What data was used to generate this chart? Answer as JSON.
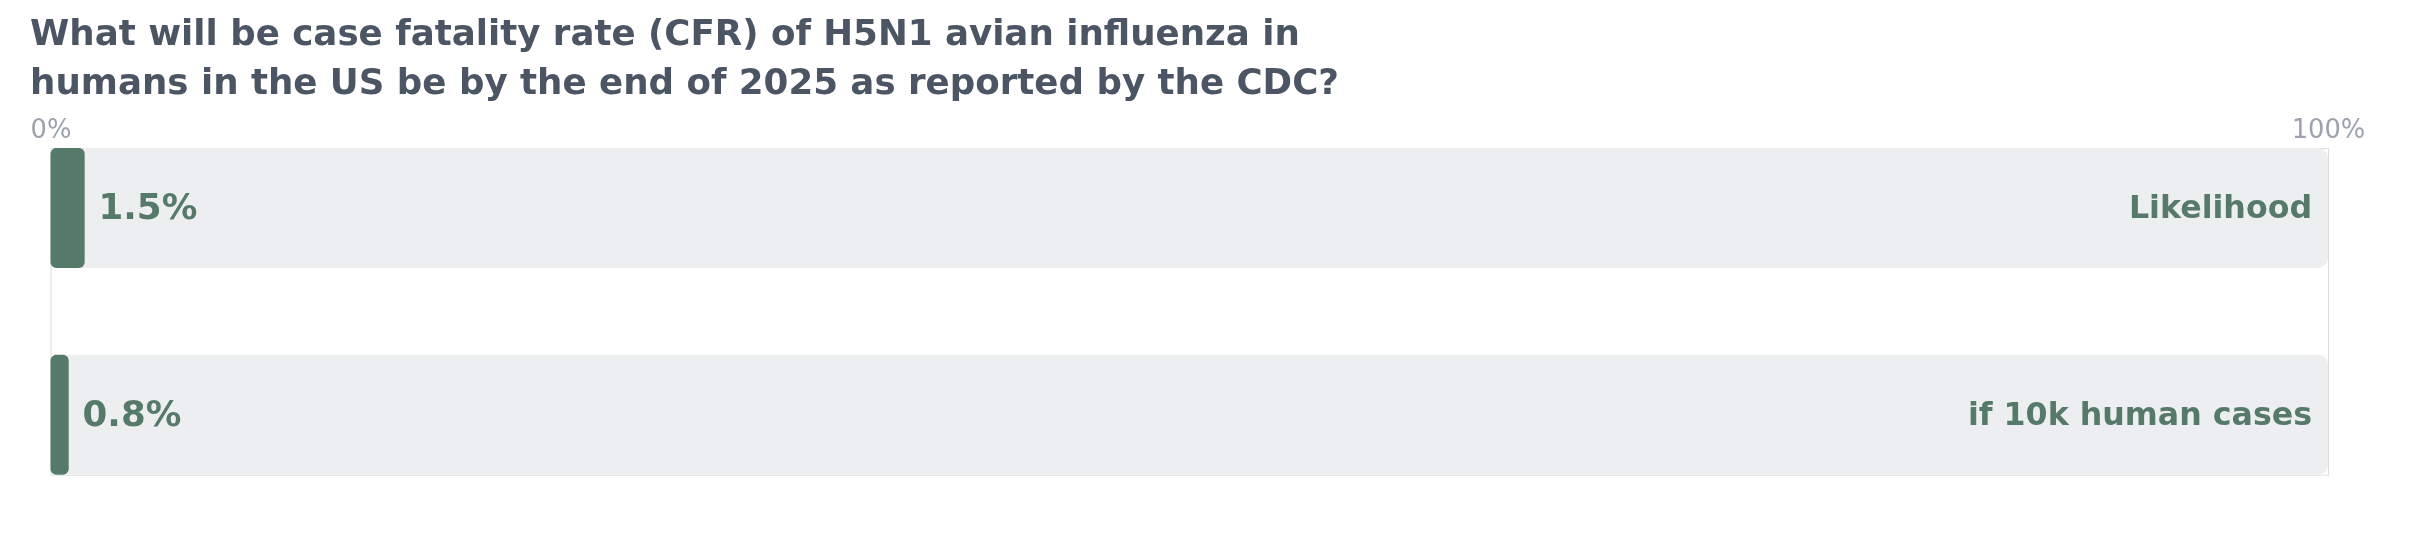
{
  "chart_data": {
    "type": "bar",
    "orientation": "horizontal",
    "title": [
      "What will be case fatality rate (CFR) of H5N1 avian influenza in",
      "humans in the US be by the end of 2025 as reported by the CDC?"
    ],
    "categories": [
      "Likelihood",
      "if 10k human cases"
    ],
    "series": [
      {
        "color": "#557a6a",
        "values": [
          1.5,
          0.8
        ]
      }
    ],
    "value_labels": [
      "1.5%",
      "0.8%"
    ],
    "xlim": [
      0,
      100
    ],
    "xticks": [
      {
        "value": 0,
        "label": "0%"
      },
      {
        "value": 100,
        "label": "100%"
      }
    ],
    "grid": false
  }
}
